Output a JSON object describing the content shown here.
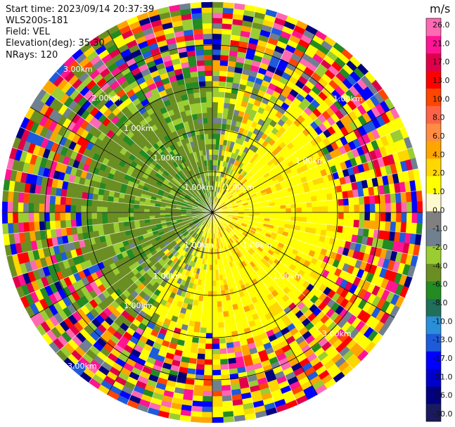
{
  "header": {
    "start_time": "Start time: 2023/09/14 20:37:39",
    "instrument": "WLS200s-181",
    "field": "Field: VEL",
    "elevation": "Elevation(deg): 35.30",
    "nrays": "NRays: 120"
  },
  "colorbar": {
    "unit": "m/s",
    "ticks": [
      "26.0",
      "21.0",
      "17.0",
      "13.0",
      "10.0",
      "8.0",
      "6.0",
      "4.0",
      "2.0",
      "1.0",
      "0.0",
      "-1.0",
      "-2.0",
      "-4.0",
      "-6.0",
      "-8.0",
      "-10.0",
      "-13.0",
      "-17.0",
      "-21.0",
      "-26.0",
      "-30.0"
    ],
    "colors": [
      "#1a1a5e",
      "#000080",
      "#0000cd",
      "#0000ff",
      "#1e5adc",
      "#2a8fd8",
      "#1f6f5a",
      "#228b22",
      "#6b8e23",
      "#9acd32",
      "#708090",
      "#808080",
      "#fffacd",
      "#ffff00",
      "#ffd700",
      "#ffa500",
      "#ff8c42",
      "#ff6347",
      "#ff4500",
      "#ff0000",
      "#e0004a",
      "#ff1493",
      "#ff69b4"
    ]
  },
  "ring_labels": [
    "1.00km",
    "2.00km",
    "3.00km"
  ],
  "chart_data": {
    "type": "heatmap",
    "projection": "polar PPI",
    "field": "VEL",
    "units": "m/s",
    "n_rays": 120,
    "elevation_deg": 35.3,
    "range_rings_km": [
      1,
      2,
      3
    ],
    "color_scale_range": [
      -30,
      26
    ]
  }
}
